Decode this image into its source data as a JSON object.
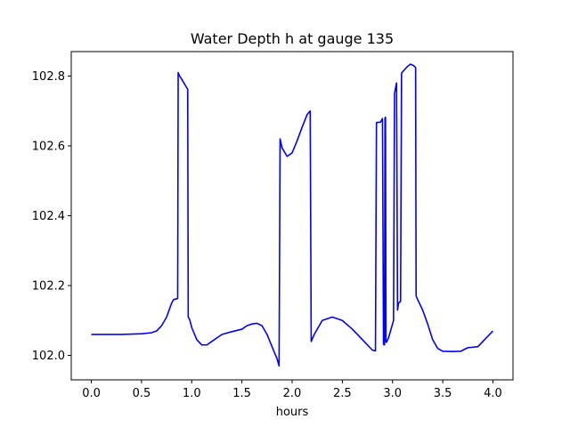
{
  "chart_data": {
    "type": "line",
    "title": "Water Depth h at gauge 135",
    "xlabel": "hours",
    "ylabel": "",
    "xlim": [
      -0.2,
      4.2
    ],
    "ylim": [
      101.93,
      102.87
    ],
    "xticks": [
      0.0,
      0.5,
      1.0,
      1.5,
      2.0,
      2.5,
      3.0,
      3.5,
      4.0
    ],
    "xtick_labels": [
      "0.0",
      "0.5",
      "1.0",
      "1.5",
      "2.0",
      "2.5",
      "3.0",
      "3.5",
      "4.0"
    ],
    "yticks": [
      102.0,
      102.2,
      102.4,
      102.6,
      102.8
    ],
    "ytick_labels": [
      "102.0",
      "102.2",
      "102.4",
      "102.6",
      "102.8"
    ],
    "grid": false,
    "series": [
      {
        "color": "#0000ff",
        "x": [
          0.0,
          0.3,
          0.5,
          0.6,
          0.65,
          0.7,
          0.75,
          0.8,
          0.82,
          0.86,
          0.865,
          0.88,
          0.91,
          0.96,
          0.965,
          0.98,
          1.0,
          1.05,
          1.1,
          1.15,
          1.2,
          1.3,
          1.4,
          1.5,
          1.55,
          1.6,
          1.65,
          1.7,
          1.75,
          1.8,
          1.85,
          1.87,
          1.88,
          1.9,
          1.95,
          2.0,
          2.05,
          2.1,
          2.15,
          2.18,
          2.19,
          2.22,
          2.3,
          2.4,
          2.5,
          2.6,
          2.7,
          2.8,
          2.83,
          2.84,
          2.88,
          2.9,
          2.91,
          2.92,
          2.925,
          2.93,
          2.935,
          2.94,
          2.96,
          2.99,
          3.01,
          3.02,
          3.04,
          3.05,
          3.06,
          3.08,
          3.09,
          3.1,
          3.15,
          3.18,
          3.21,
          3.23,
          3.235,
          3.25,
          3.3,
          3.35,
          3.4,
          3.45,
          3.5,
          3.6,
          3.68,
          3.7,
          3.75,
          3.85,
          3.9,
          4.0
        ],
        "y": [
          102.06,
          102.06,
          102.062,
          102.065,
          102.07,
          102.085,
          102.11,
          102.15,
          102.16,
          102.163,
          102.81,
          102.8,
          102.786,
          102.762,
          102.11,
          102.102,
          102.08,
          102.045,
          102.03,
          102.03,
          102.04,
          102.06,
          102.068,
          102.075,
          102.085,
          102.09,
          102.092,
          102.085,
          102.06,
          102.025,
          101.99,
          101.97,
          102.62,
          102.594,
          102.57,
          102.58,
          102.615,
          102.654,
          102.69,
          102.7,
          102.04,
          102.06,
          102.1,
          102.11,
          102.1,
          102.075,
          102.045,
          102.015,
          102.013,
          102.667,
          102.668,
          102.678,
          102.032,
          102.03,
          102.68,
          102.682,
          102.038,
          102.038,
          102.05,
          102.08,
          102.1,
          102.75,
          102.78,
          102.13,
          102.15,
          102.155,
          102.808,
          102.812,
          102.828,
          102.834,
          102.83,
          102.824,
          102.17,
          102.16,
          102.13,
          102.09,
          102.045,
          102.02,
          102.012,
          102.011,
          102.012,
          102.015,
          102.022,
          102.025,
          102.04,
          102.07
        ]
      }
    ]
  }
}
